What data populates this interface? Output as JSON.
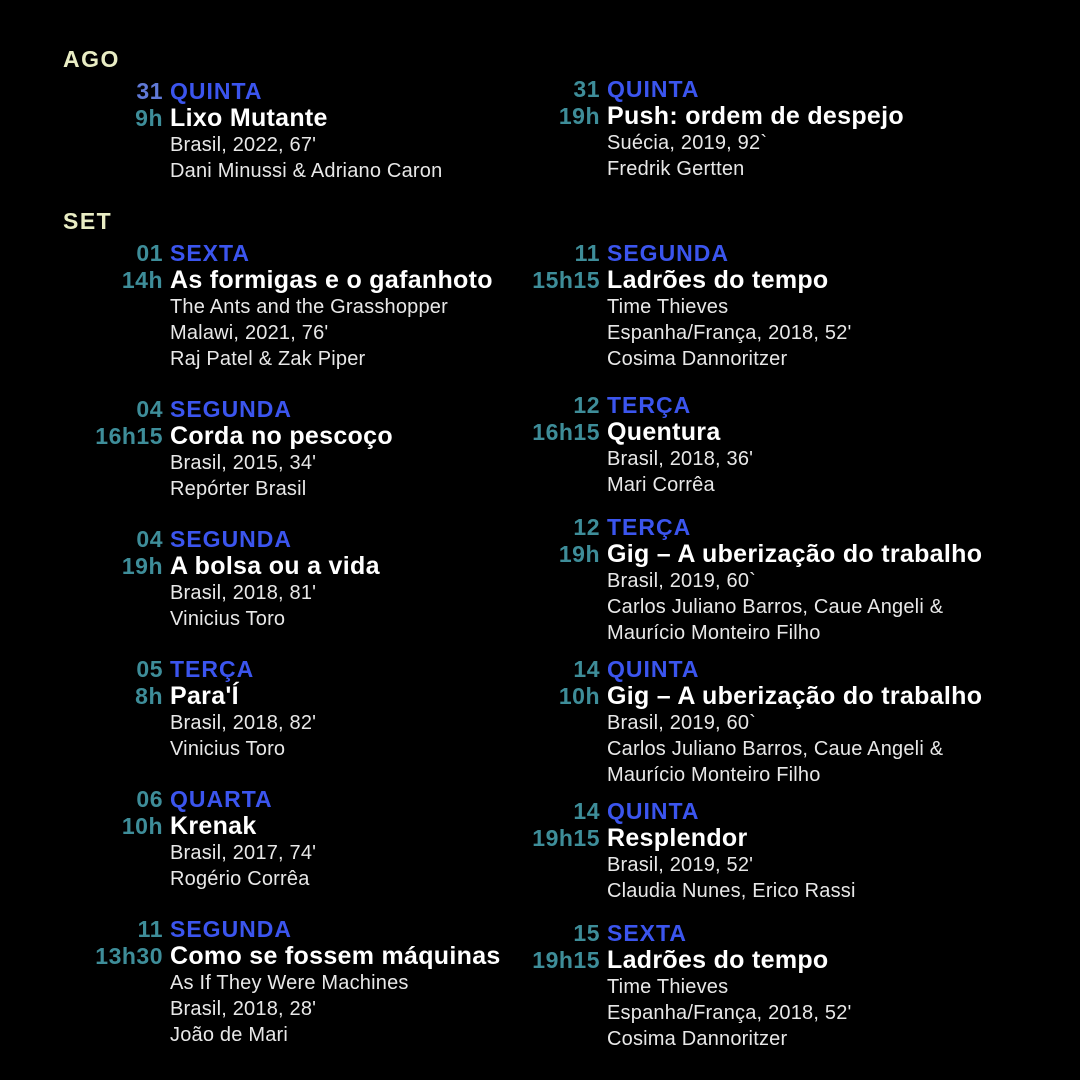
{
  "palette": {
    "background": "#000000",
    "month_label": "#e9edc4",
    "weekday_blue": "#3b55ee",
    "accent_teal": "#3e8d99",
    "accent_periwinkle": "#6079d6",
    "title_white": "#ffffff",
    "details_gray": "#e8e8e8"
  },
  "columns": [
    {
      "sections": [
        {
          "month": "AGO",
          "entries": [
            {
              "day": "31",
              "day_color": "periwinkle",
              "weekday": "QUINTA",
              "time": "9h",
              "title": "Lixo Mutante",
              "details": [
                "Brasil, 2022, 67'",
                "Dani Minussi & Adriano Caron"
              ]
            }
          ]
        },
        {
          "month": "SET",
          "entries": [
            {
              "day": "01",
              "weekday": "SEXTA",
              "time": "14h",
              "title": "As formigas e o gafanhoto",
              "details": [
                "The Ants and the Grasshopper",
                "Malawi, 2021, 76'",
                "Raj Patel & Zak Piper"
              ]
            },
            {
              "day": "04",
              "weekday": "SEGUNDA",
              "time": "16h15",
              "title": "Corda no pescoço",
              "details": [
                "Brasil, 2015, 34'",
                "Repórter Brasil"
              ]
            },
            {
              "day": "04",
              "weekday": "SEGUNDA",
              "time": "19h",
              "title": "A bolsa ou a vida",
              "details": [
                "Brasil, 2018, 81'",
                "Vinicius Toro"
              ]
            },
            {
              "day": "05",
              "weekday": "TERÇA",
              "time": "8h",
              "title": "Para'Í",
              "details": [
                "Brasil, 2018, 82'",
                "Vinicius Toro"
              ]
            },
            {
              "day": "06",
              "weekday": "QUARTA",
              "time": "10h",
              "title": "Krenak",
              "details": [
                "Brasil, 2017, 74'",
                "Rogério Corrêa"
              ]
            },
            {
              "day": "11",
              "weekday": "SEGUNDA",
              "time": "13h30",
              "title": "Como se fossem máquinas",
              "details": [
                "As If They Were Machines",
                "Brasil, 2018, 28'",
                "João de Mari"
              ]
            }
          ]
        }
      ]
    },
    {
      "sections": [
        {
          "month": null,
          "entries": [
            {
              "day": "31",
              "weekday": "QUINTA",
              "time": "19h",
              "title": "Push: ordem de despejo",
              "details": [
                "Suécia, 2019, 92`",
                "Fredrik Gertten"
              ]
            },
            {
              "day": "11",
              "weekday": "SEGUNDA",
              "time": "15h15",
              "title": "Ladrões do tempo",
              "details": [
                "Time Thieves",
                "Espanha/França, 2018, 52'",
                "Cosima Dannoritzer"
              ]
            },
            {
              "day": "12",
              "weekday": "TERÇA",
              "time": "16h15",
              "title": "Quentura",
              "details": [
                "Brasil, 2018, 36'",
                "Mari Corrêa"
              ]
            },
            {
              "day": "12",
              "weekday": "TERÇA",
              "time": "19h",
              "title": "Gig – A uberização do trabalho",
              "details": [
                "Brasil, 2019, 60`",
                "Carlos Juliano Barros, Caue Angeli &",
                "Maurício Monteiro Filho"
              ]
            },
            {
              "day": "14",
              "weekday": "QUINTA",
              "time": "10h",
              "title": "Gig – A uberização do trabalho",
              "details": [
                "Brasil, 2019, 60`",
                "Carlos Juliano Barros, Caue Angeli &",
                "Maurício Monteiro Filho"
              ]
            },
            {
              "day": "14",
              "weekday": "QUINTA",
              "time": "19h15",
              "title": "Resplendor",
              "details": [
                "Brasil, 2019, 52'",
                "Claudia Nunes, Erico Rassi"
              ]
            },
            {
              "day": "15",
              "weekday": "SEXTA",
              "time": "19h15",
              "title": "Ladrões do tempo",
              "details": [
                "Time Thieves",
                "Espanha/França, 2018, 52'",
                "Cosima Dannoritzer"
              ]
            }
          ]
        }
      ]
    }
  ]
}
